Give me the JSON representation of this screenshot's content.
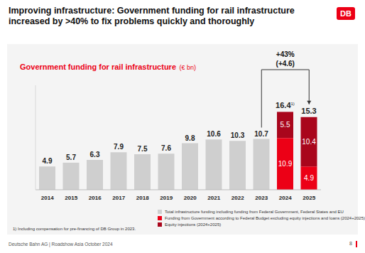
{
  "header": {
    "title": "Improving infrastructure: Government funding for rail infrastructure increased by >40% to fix problems quickly and thoroughly",
    "logo": "DB"
  },
  "chart_data": {
    "type": "bar",
    "title": "Government funding for rail infrastructure",
    "subtitle": "(€ bn)",
    "categories": [
      "2014",
      "2015",
      "2016",
      "2017",
      "2018",
      "2019",
      "2020",
      "2021",
      "2022",
      "2023",
      "2024",
      "2025"
    ],
    "series": [
      {
        "name": "Total infrastructure funding including funding from Federal Government, Federal States and EU",
        "color": "#cfcfcf",
        "values": [
          4.9,
          5.7,
          6.3,
          7.9,
          7.5,
          7.6,
          9.8,
          10.6,
          10.3,
          10.7,
          null,
          null
        ]
      },
      {
        "name": "Funding from Government according to Federal Budget excluding equity injections and loans (2024+2025)",
        "color": "#ec0016",
        "values": [
          null,
          null,
          null,
          null,
          null,
          null,
          null,
          null,
          null,
          null,
          10.9,
          4.9
        ]
      },
      {
        "name": "Equity injections (2024+2025)",
        "color": "#a9061c",
        "values": [
          null,
          null,
          null,
          null,
          null,
          null,
          null,
          null,
          null,
          null,
          5.5,
          10.4
        ]
      }
    ],
    "totals": [
      null,
      null,
      null,
      null,
      null,
      null,
      null,
      null,
      null,
      null,
      16.4,
      15.3
    ],
    "total_notes": [
      null,
      null,
      null,
      null,
      null,
      null,
      null,
      null,
      null,
      null,
      "1)",
      null
    ],
    "annotations": [
      "+43%",
      "(+4.6)"
    ],
    "footnote": "1) Including compensation for pre-financing of DB Group in 2023.",
    "ylim": [
      0,
      22
    ],
    "stacked": true,
    "data_labels": true,
    "tick_labels": "x",
    "grid": false,
    "legend": "bottom"
  },
  "footer": {
    "source": "Deutsche Bahn AG | Roadshow Asia October 2024",
    "page": "8"
  }
}
